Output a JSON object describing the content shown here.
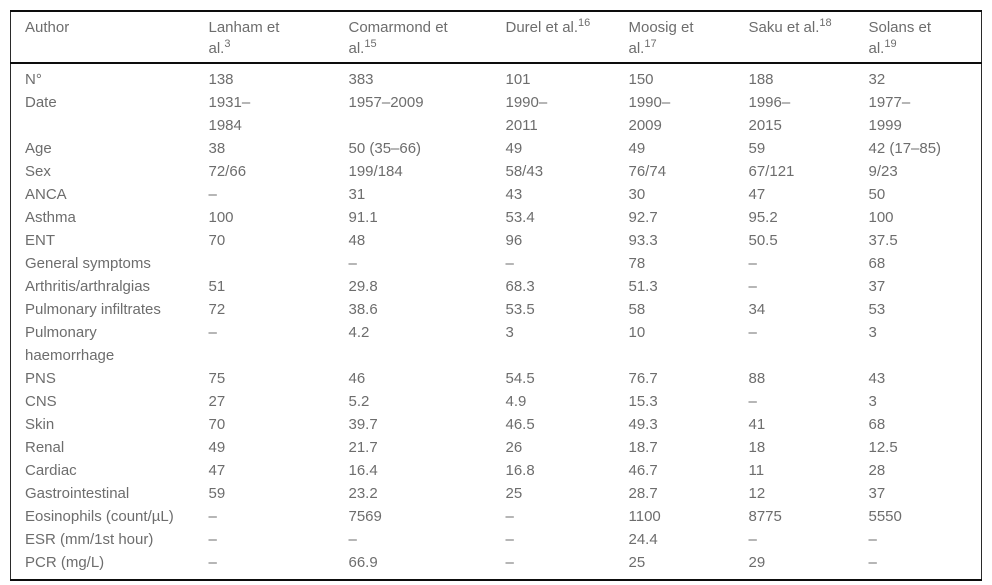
{
  "colors": {
    "text": "#6d6d6d",
    "rule": "#0d0d0d",
    "background": "#ffffff"
  },
  "table": {
    "columns": [
      {
        "name": "Author",
        "ref": ""
      },
      {
        "name": "Lanham et\nal.",
        "ref": "3"
      },
      {
        "name": "Comarmond et\nal.",
        "ref": "15"
      },
      {
        "name": "Durel et al.",
        "ref": "16"
      },
      {
        "name": "Moosig et\nal.",
        "ref": "17"
      },
      {
        "name": "Saku et al.",
        "ref": "18"
      },
      {
        "name": "Solans et\nal.",
        "ref": "19"
      }
    ],
    "rows": [
      {
        "label": "N°",
        "values": [
          "138",
          "383",
          "101",
          "150",
          "188",
          "32"
        ]
      },
      {
        "label": "Date",
        "values": [
          "1931–\n1984",
          "1957–2009",
          "1990–\n2011",
          "1990–\n2009",
          "1996–\n2015",
          "1977–\n1999"
        ]
      },
      {
        "label": "Age",
        "values": [
          "38",
          "50 (35–66)",
          "49",
          "49",
          "59",
          "42 (17–85)"
        ]
      },
      {
        "label": "Sex",
        "values": [
          "72/66",
          "199/184",
          "58/43",
          "76/74",
          "67/121",
          "9/23"
        ]
      },
      {
        "label": "ANCA",
        "values": [
          "–",
          "31",
          "43",
          "30",
          "47",
          "50"
        ]
      },
      {
        "label": "Asthma",
        "values": [
          "100",
          "91.1",
          "53.4",
          "92.7",
          "95.2",
          "100"
        ]
      },
      {
        "label": "ENT",
        "values": [
          "70",
          "48",
          "96",
          "93.3",
          "50.5",
          "37.5"
        ]
      },
      {
        "label": "General symptoms",
        "values": [
          "",
          "–",
          "–",
          "78",
          "–",
          "68"
        ]
      },
      {
        "label": "Arthritis/arthralgias",
        "values": [
          "51",
          "29.8",
          "68.3",
          "51.3",
          "–",
          "37"
        ]
      },
      {
        "label": "Pulmonary infiltrates",
        "values": [
          "72",
          "38.6",
          "53.5",
          "58",
          "34",
          "53"
        ]
      },
      {
        "label": "Pulmonary\nhaemorrhage",
        "values": [
          "–",
          "4.2",
          "3",
          "10",
          "–",
          "3"
        ]
      },
      {
        "label": "PNS",
        "values": [
          "75",
          "46",
          "54.5",
          "76.7",
          "88",
          "43"
        ]
      },
      {
        "label": "CNS",
        "values": [
          "27",
          "5.2",
          "4.9",
          "15.3",
          "–",
          "3"
        ]
      },
      {
        "label": "Skin",
        "values": [
          "70",
          "39.7",
          "46.5",
          "49.3",
          "41",
          "68"
        ]
      },
      {
        "label": "Renal",
        "values": [
          "49",
          "21.7",
          "26",
          "18.7",
          "18",
          "12.5"
        ]
      },
      {
        "label": "Cardiac",
        "values": [
          "47",
          "16.4",
          "16.8",
          "46.7",
          "11",
          "28"
        ]
      },
      {
        "label": "Gastrointestinal",
        "values": [
          "59",
          "23.2",
          "25",
          "28.7",
          "12",
          "37"
        ]
      },
      {
        "label": "Eosinophils (count/µL)",
        "values": [
          "–",
          "7569",
          "–",
          "1100",
          "8775",
          "5550"
        ]
      },
      {
        "label": "ESR (mm/1st hour)",
        "values": [
          "–",
          "–",
          "–",
          "24.4",
          "–",
          "–"
        ]
      },
      {
        "label": "PCR (mg/L)",
        "values": [
          "–",
          "66.9",
          "–",
          "25",
          "29",
          "–"
        ]
      }
    ]
  }
}
